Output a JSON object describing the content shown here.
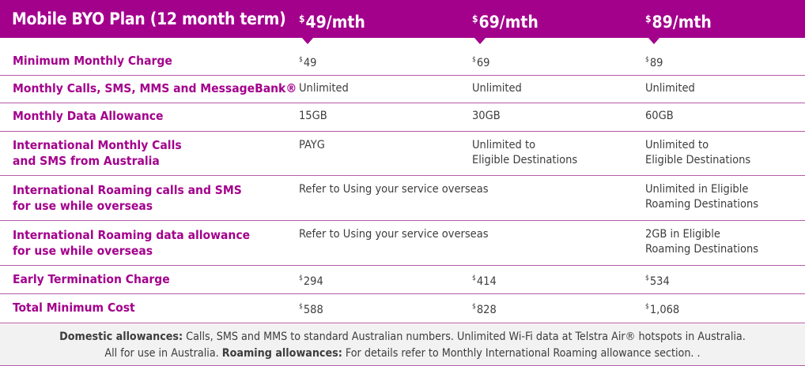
{
  "header": {
    "plan_title": "Mobile BYO Plan (12 month term)",
    "currency_symbol": "$",
    "prices": [
      "49/mth",
      "69/mth",
      "89/mth"
    ]
  },
  "rows": [
    {
      "label": [
        "Minimum Monthly Charge"
      ],
      "values": [
        [
          "$",
          "49"
        ],
        [
          "$",
          "69"
        ],
        [
          "$",
          "89"
        ]
      ]
    },
    {
      "label": [
        "Monthly Calls, SMS, MMS and MessageBank®"
      ],
      "values": [
        [
          "",
          "Unlimited"
        ],
        [
          "",
          "Unlimited"
        ],
        [
          "",
          "Unlimited"
        ]
      ]
    },
    {
      "label": [
        "Monthly Data Allowance"
      ],
      "values": [
        [
          "",
          "15GB"
        ],
        [
          "",
          "30GB"
        ],
        [
          "",
          "60GB"
        ]
      ]
    },
    {
      "label": [
        "International Monthly Calls",
        "and SMS from Australia"
      ],
      "values": [
        [
          "",
          "PAYG"
        ],
        [
          "",
          "Unlimited to",
          "Eligible Destinations"
        ],
        [
          "",
          "Unlimited to",
          "Eligible Destinations"
        ]
      ]
    },
    {
      "label": [
        "International Roaming calls and SMS",
        "for use while overseas"
      ],
      "values": [
        [
          "",
          "Refer to Using your service overseas"
        ],
        null,
        [
          "",
          "Unlimited in Eligible",
          "Roaming Destinations"
        ]
      ]
    },
    {
      "label": [
        "International Roaming data allowance",
        "for use while overseas"
      ],
      "values": [
        [
          "",
          "Refer to Using your service overseas"
        ],
        null,
        [
          "",
          "2GB in Eligible",
          "Roaming Destinations"
        ]
      ]
    },
    {
      "label": [
        "Early Termination Charge"
      ],
      "values": [
        [
          "$",
          "294"
        ],
        [
          "$",
          "414"
        ],
        [
          "$",
          "534"
        ]
      ]
    },
    {
      "label": [
        "Total Minimum Cost"
      ],
      "values": [
        [
          "$",
          "588"
        ],
        [
          "$",
          "828"
        ],
        [
          "$",
          "1,068"
        ]
      ]
    }
  ],
  "footer": {
    "line1_bold": "Domestic allowances:",
    "line1_text": " Calls, SMS and MMS to standard Australian numbers. Unlimited Wi-Fi data at Telstra Air® hotspots in Australia.",
    "line2_text": "All for use in Australia. ",
    "line2_bold": "Roaming allowances:",
    "line2_text2": " For details refer to Monthly International Roaming allowance section. ."
  }
}
